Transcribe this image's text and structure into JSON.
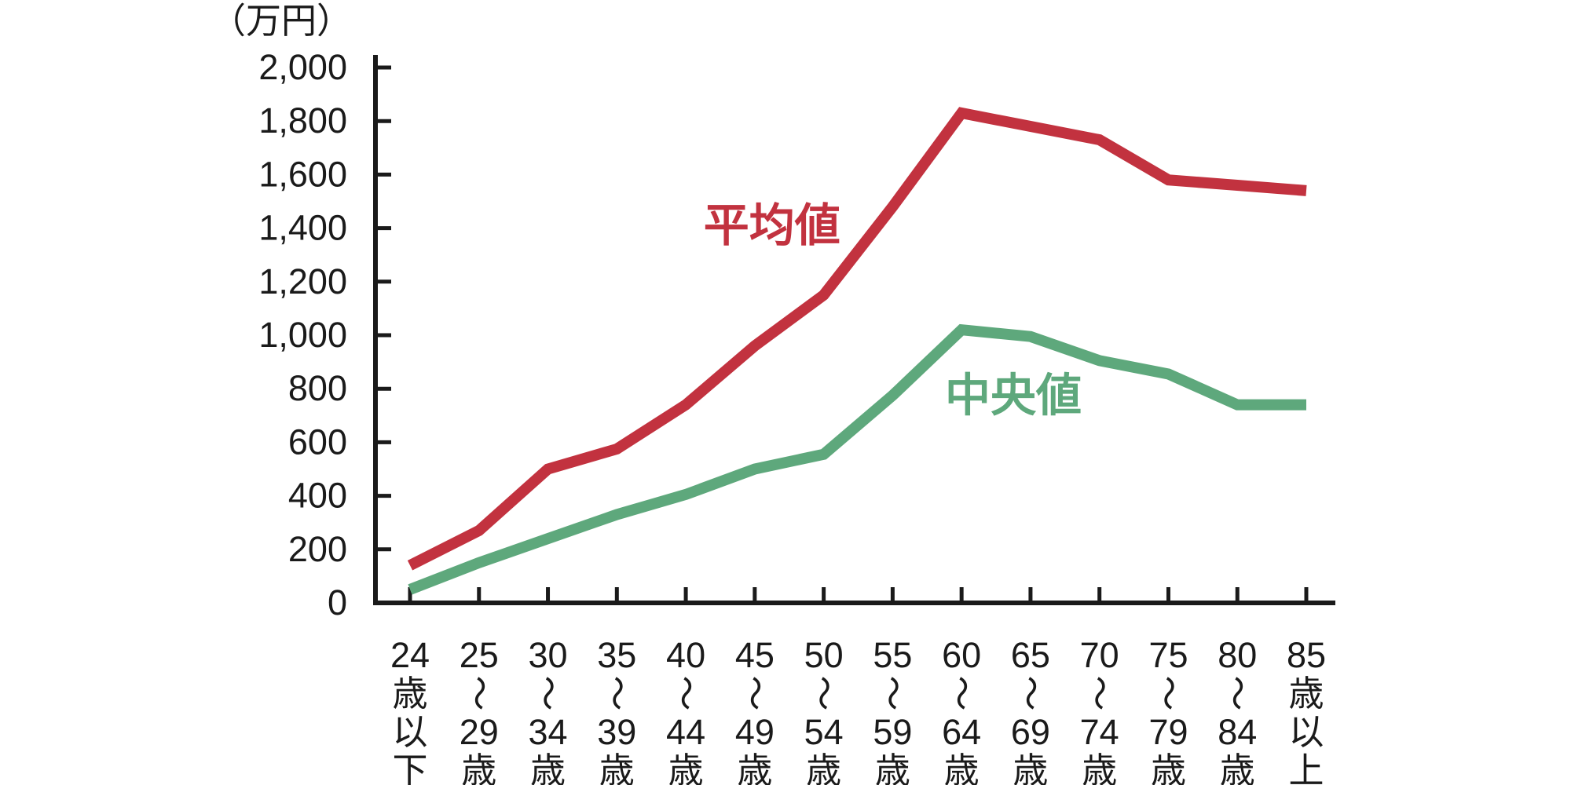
{
  "chart_data": {
    "type": "line",
    "title": "",
    "unit_label": "（万円）",
    "xlabel": "",
    "ylabel": "",
    "ylim": [
      0,
      2000
    ],
    "ytick_interval": 200,
    "ytick_labels": [
      "0",
      "200",
      "400",
      "600",
      "800",
      "1,000",
      "1,200",
      "1,400",
      "1,600",
      "1,800",
      "2,000"
    ],
    "grid": false,
    "legend_position": "inline-labels",
    "categories": [
      "24歳以下",
      "25〜29歳",
      "30〜34歳",
      "35〜39歳",
      "40〜44歳",
      "45〜49歳",
      "50〜54歳",
      "55〜59歳",
      "60〜64歳",
      "65〜69歳",
      "70〜74歳",
      "75〜79歳",
      "80〜84歳",
      "85歳以上"
    ],
    "category_lines": [
      [
        "24",
        "歳",
        "以",
        "下"
      ],
      [
        "25",
        "〜",
        "29",
        "歳"
      ],
      [
        "30",
        "〜",
        "34",
        "歳"
      ],
      [
        "35",
        "〜",
        "39",
        "歳"
      ],
      [
        "40",
        "〜",
        "44",
        "歳"
      ],
      [
        "45",
        "〜",
        "49",
        "歳"
      ],
      [
        "50",
        "〜",
        "54",
        "歳"
      ],
      [
        "55",
        "〜",
        "59",
        "歳"
      ],
      [
        "60",
        "〜",
        "64",
        "歳"
      ],
      [
        "65",
        "〜",
        "69",
        "歳"
      ],
      [
        "70",
        "〜",
        "74",
        "歳"
      ],
      [
        "75",
        "〜",
        "79",
        "歳"
      ],
      [
        "80",
        "〜",
        "84",
        "歳"
      ],
      [
        "85",
        "歳",
        "以",
        "上"
      ]
    ],
    "series": [
      {
        "name": "平均値",
        "color": "#c2323f",
        "values": [
          140,
          270,
          500,
          575,
          740,
          960,
          1150,
          1480,
          1830,
          1780,
          1730,
          1580,
          1560,
          1540
        ]
      },
      {
        "name": "中央値",
        "color": "#5ea87c",
        "values": [
          50,
          150,
          240,
          330,
          405,
          500,
          555,
          775,
          1020,
          995,
          905,
          855,
          740,
          740
        ]
      }
    ],
    "axis_color": "#1a1a1a"
  },
  "annotations": {
    "mean_label": "平均値",
    "median_label": "中央値"
  }
}
